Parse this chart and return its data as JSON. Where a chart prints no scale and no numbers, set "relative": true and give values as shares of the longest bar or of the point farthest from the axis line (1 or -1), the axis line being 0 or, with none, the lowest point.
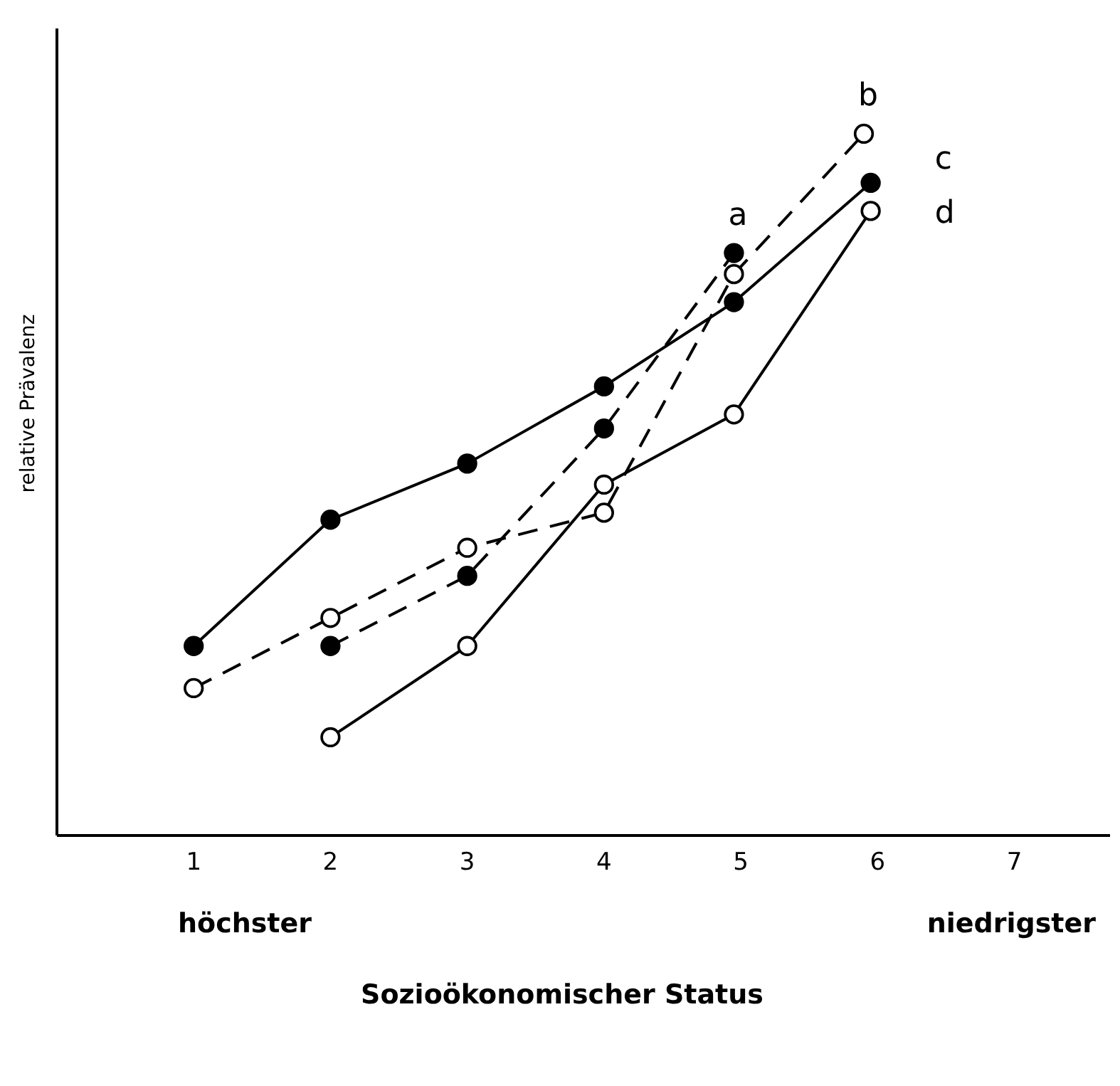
{
  "chart_data": {
    "type": "line",
    "xlabel": "Sozioökonomischer Status",
    "ylabel": "relative Prävalenz",
    "relative": true,
    "xlim": [
      0,
      7.7
    ],
    "xticks": [
      1,
      2,
      3,
      4,
      5,
      6,
      7
    ],
    "grid": false,
    "legend": false,
    "annotations": [
      "höchster",
      "niedrigster"
    ],
    "series": [
      {
        "name": "a",
        "color": "#000000",
        "line_style": "dashed",
        "marker": "circle",
        "x": [
          2,
          3,
          4,
          4.95
        ],
        "values": [
          0.27,
          0.37,
          0.58,
          0.83
        ]
      },
      {
        "name": "b",
        "color": "#000000",
        "line_style": "dashed",
        "marker": "circle-open",
        "x": [
          1,
          2,
          3,
          4,
          4.95,
          5.9
        ],
        "values": [
          0.21,
          0.31,
          0.41,
          0.46,
          0.8,
          1.0
        ]
      },
      {
        "name": "c",
        "color": "#000000",
        "line_style": "solid",
        "marker": "circle",
        "x": [
          1,
          2,
          3,
          4,
          4.95,
          5.95
        ],
        "values": [
          0.27,
          0.45,
          0.53,
          0.64,
          0.76,
          0.93
        ]
      },
      {
        "name": "d",
        "color": "#000000",
        "line_style": "solid",
        "marker": "circle-open",
        "x": [
          2,
          3,
          4,
          4.95,
          5.95
        ],
        "values": [
          0.14,
          0.27,
          0.5,
          0.6,
          0.89
        ]
      }
    ]
  }
}
